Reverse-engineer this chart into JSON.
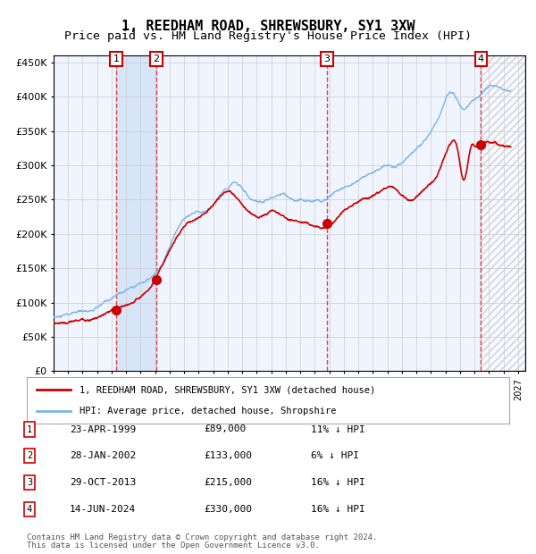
{
  "title": "1, REEDHAM ROAD, SHREWSBURY, SY1 3XW",
  "subtitle": "Price paid vs. HM Land Registry's House Price Index (HPI)",
  "title_fontsize": 11,
  "subtitle_fontsize": 9.5,
  "ylabel_ticks": [
    "£0",
    "£50K",
    "£100K",
    "£150K",
    "£200K",
    "£250K",
    "£300K",
    "£350K",
    "£400K",
    "£450K"
  ],
  "ytick_vals": [
    0,
    50000,
    100000,
    150000,
    200000,
    250000,
    300000,
    350000,
    400000,
    450000
  ],
  "ylim": [
    0,
    460000
  ],
  "xlim_start": 1995.0,
  "xlim_end": 2027.5,
  "background_color": "#ffffff",
  "plot_bg_color": "#f0f4ff",
  "grid_color": "#cccccc",
  "hpi_line_color": "#7ab4e8",
  "price_line_color": "#cc0000",
  "marker_color": "#cc0000",
  "purchases": [
    {
      "year": 1999.31,
      "price": 89000,
      "label": "1"
    },
    {
      "year": 2002.08,
      "price": 133000,
      "label": "2"
    },
    {
      "year": 2013.83,
      "price": 215000,
      "label": "3"
    },
    {
      "year": 2024.45,
      "price": 330000,
      "label": "4"
    }
  ],
  "purchase_details": [
    {
      "num": "1",
      "date": "23-APR-1999",
      "price": "£89,000",
      "note": "11% ↓ HPI"
    },
    {
      "num": "2",
      "date": "28-JAN-2002",
      "price": "£133,000",
      "note": "6% ↓ HPI"
    },
    {
      "num": "3",
      "date": "29-OCT-2013",
      "price": "£215,000",
      "note": "16% ↓ HPI"
    },
    {
      "num": "4",
      "date": "14-JUN-2024",
      "price": "£330,000",
      "note": "16% ↓ HPI"
    }
  ],
  "legend_line1": "1, REEDHAM ROAD, SHREWSBURY, SY1 3XW (detached house)",
  "legend_line2": "HPI: Average price, detached house, Shropshire",
  "footer_line1": "Contains HM Land Registry data © Crown copyright and database right 2024.",
  "footer_line2": "This data is licensed under the Open Government Licence v3.0.",
  "hatched_region_start": 2024.45,
  "shaded_region": [
    [
      1999.31,
      2002.08
    ]
  ]
}
